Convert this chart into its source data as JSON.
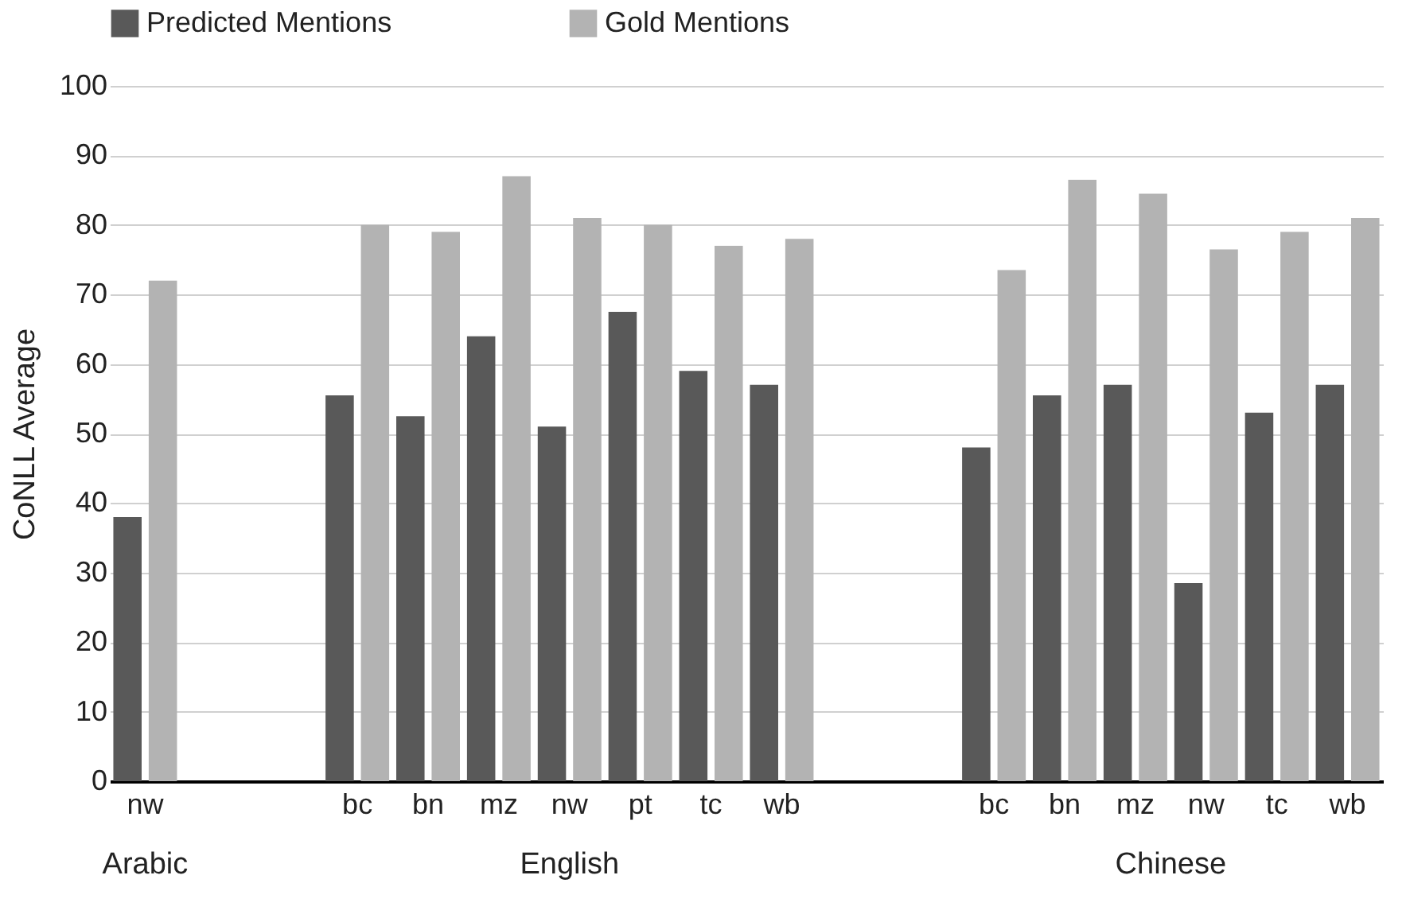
{
  "chart_data": {
    "type": "bar",
    "ylabel": "CoNLL Average",
    "categories": [
      "nw",
      null,
      null,
      "bc",
      "bn",
      "mz",
      "nw",
      "pt",
      "tc",
      "wb",
      null,
      null,
      "bc",
      "bn",
      "mz",
      "nw",
      "tc",
      "wb"
    ],
    "series": [
      {
        "name": "Predicted Mentions",
        "color": "#595959",
        "values": [
          38,
          null,
          null,
          55.5,
          52.5,
          64,
          51,
          67.5,
          59,
          57,
          null,
          null,
          48,
          55.5,
          57,
          28.5,
          53,
          57
        ]
      },
      {
        "name": "Gold Mentions",
        "color": "#b3b3b3",
        "values": [
          72,
          null,
          null,
          80,
          79,
          87,
          81,
          80,
          77,
          78,
          null,
          null,
          73.5,
          86.5,
          84.5,
          76.5,
          79,
          81
        ]
      }
    ],
    "ylim": [
      0,
      100
    ],
    "yticks": [
      0,
      10,
      20,
      30,
      40,
      50,
      60,
      70,
      80,
      90,
      100
    ],
    "grid": "y",
    "legend": "top",
    "annotations": [
      "Arabic",
      "English",
      "Chinese"
    ]
  }
}
